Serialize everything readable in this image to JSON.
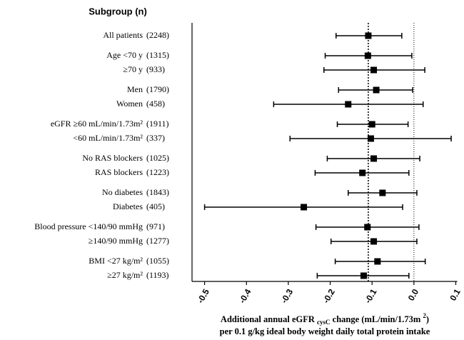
{
  "chart_data": {
    "type": "forest",
    "header": "Subgroup (n)",
    "rows": [
      {
        "label": "All patients",
        "n": "(2248)",
        "estimate": -0.109,
        "lower": -0.186,
        "upper": -0.029
      },
      {
        "label": "Age <70 y",
        "n": "(1315)",
        "estimate": -0.11,
        "lower": -0.212,
        "upper": -0.005
      },
      {
        "label": "≥70 y",
        "n": "(933)",
        "estimate": -0.096,
        "lower": -0.215,
        "upper": 0.026
      },
      {
        "label": "Men",
        "n": "(1790)",
        "estimate": -0.09,
        "lower": -0.18,
        "upper": -0.003
      },
      {
        "label": "Women",
        "n": "(458)",
        "estimate": -0.157,
        "lower": -0.335,
        "upper": 0.022
      },
      {
        "label": "eGFR ≥60 mL/min/1.73m²",
        "n": "(1911)",
        "estimate": -0.1,
        "lower": -0.183,
        "upper": -0.014
      },
      {
        "label": "<60 mL/min/1.73m²",
        "n": "(337)",
        "estimate": -0.103,
        "lower": -0.296,
        "upper": 0.089
      },
      {
        "label": "No RAS blockers",
        "n": "(1025)",
        "estimate": -0.096,
        "lower": -0.207,
        "upper": 0.014
      },
      {
        "label": "RAS blockers",
        "n": "(1223)",
        "estimate": -0.123,
        "lower": -0.236,
        "upper": -0.012
      },
      {
        "label": "No diabetes",
        "n": "(1843)",
        "estimate": -0.075,
        "lower": -0.157,
        "upper": 0.007
      },
      {
        "label": "Diabetes",
        "n": "(405)",
        "estimate": -0.263,
        "lower": -0.5,
        "upper": -0.027
      },
      {
        "label": "Blood pressure <140/90 mmHg",
        "n": "(971)",
        "estimate": -0.111,
        "lower": -0.234,
        "upper": 0.012
      },
      {
        "label": "≥140/90 mmHg",
        "n": "(1277)",
        "estimate": -0.096,
        "lower": -0.198,
        "upper": 0.007
      },
      {
        "label": "BMI <27 kg/m²",
        "n": "(1055)",
        "estimate": -0.087,
        "lower": -0.188,
        "upper": 0.027
      },
      {
        "label": "≥27 kg/m²",
        "n": "(1193)",
        "estimate": -0.12,
        "lower": -0.231,
        "upper": -0.012
      }
    ],
    "xlim": [
      -0.53,
      0.1
    ],
    "xticks": [
      -0.5,
      -0.4,
      -0.3,
      -0.2,
      -0.1,
      {
        "value": 0,
        "label": "0.0"
      },
      0.1
    ],
    "reference_lines": [
      -0.109,
      0
    ],
    "color": "#000000",
    "xlabel": [
      "Additional annual eGFR ",
      "cysC",
      " change (mL/min/1.73m ",
      "2",
      ")"
    ],
    "xlabel2": "per 0.1 g/kg ideal body weight daily total protein intake"
  }
}
